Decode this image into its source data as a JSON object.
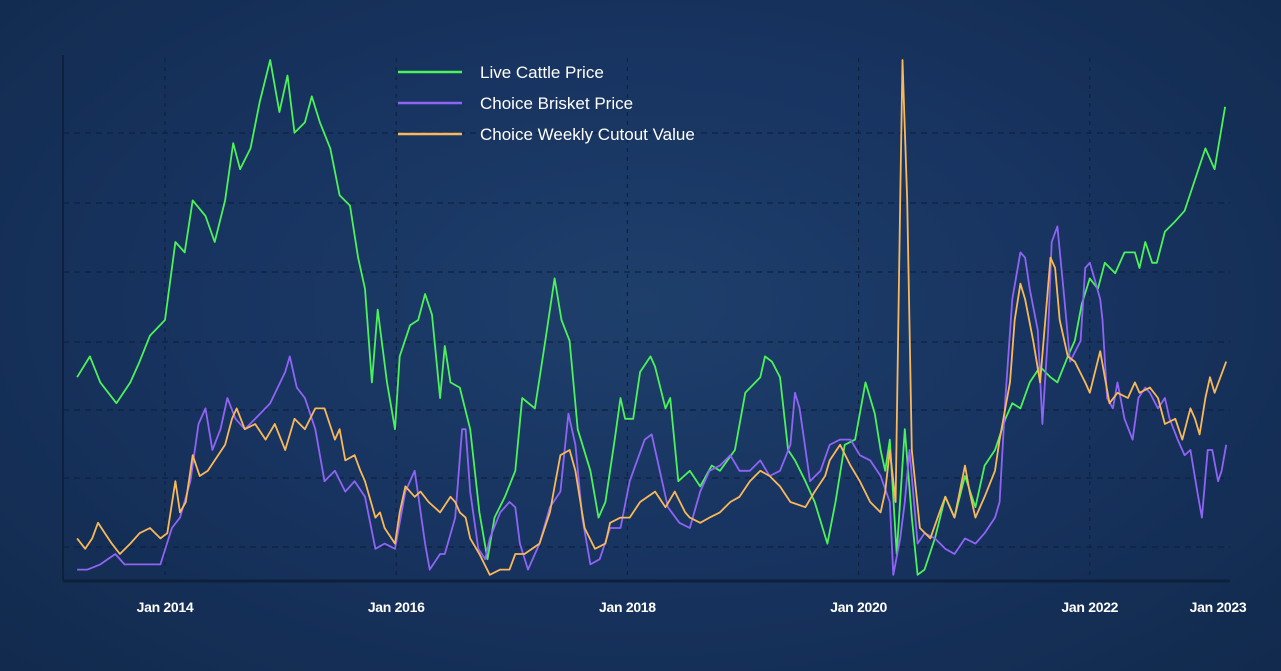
{
  "chart_data": {
    "type": "line",
    "title": "",
    "xlabel": "",
    "ylabel": "",
    "y_units": "relative index (no y-axis labels shown)",
    "xlim": [
      2013.2,
      2023.2
    ],
    "ylim": [
      0,
      100
    ],
    "grid": true,
    "legend_position": "top-center",
    "x_ticks": [
      {
        "value": 2014,
        "label": "Jan 2014"
      },
      {
        "value": 2016,
        "label": "Jan 2016"
      },
      {
        "value": 2018,
        "label": "Jan 2018"
      },
      {
        "value": 2020,
        "label": "Jan 2020"
      },
      {
        "value": 2022,
        "label": "Jan 2022"
      },
      {
        "value": 2023.1,
        "label": "Jan 2023"
      }
    ],
    "series": [
      {
        "name": "Live Cattle Price",
        "color": "#4cf25a",
        "x": [
          2013.24,
          2013.35,
          2013.44,
          2013.58,
          2013.7,
          2013.78,
          2013.87,
          2014.0,
          2014.09,
          2014.17,
          2014.24,
          2014.35,
          2014.43,
          2014.52,
          2014.59,
          2014.65,
          2014.74,
          2014.82,
          2014.91,
          2014.99,
          2015.06,
          2015.12,
          2015.21,
          2015.27,
          2015.34,
          2015.43,
          2015.51,
          2015.6,
          2015.67,
          2015.73,
          2015.79,
          2015.84,
          2015.92,
          2015.99,
          2016.03,
          2016.12,
          2016.19,
          2016.25,
          2016.31,
          2016.38,
          2016.42,
          2016.47,
          2016.55,
          2016.64,
          2016.72,
          2016.79,
          2016.85,
          2016.94,
          2017.03,
          2017.09,
          2017.2,
          2017.29,
          2017.37,
          2017.43,
          2017.5,
          2017.57,
          2017.68,
          2017.75,
          2017.81,
          2017.89,
          2017.94,
          2017.98,
          2018.05,
          2018.11,
          2018.2,
          2018.24,
          2018.33,
          2018.37,
          2018.44,
          2018.54,
          2018.63,
          2018.73,
          2018.8,
          2018.93,
          2019.02,
          2019.15,
          2019.19,
          2019.25,
          2019.32,
          2019.39,
          2019.45,
          2019.54,
          2019.62,
          2019.73,
          2019.8,
          2019.88,
          2019.97,
          2020.06,
          2020.14,
          2020.19,
          2020.23,
          2020.27,
          2020.33,
          2020.4,
          2020.46,
          2020.51,
          2020.57,
          2020.66,
          2020.75,
          2020.83,
          2020.92,
          2021.01,
          2021.09,
          2021.18,
          2021.27,
          2021.33,
          2021.4,
          2021.48,
          2021.57,
          2021.66,
          2021.72,
          2021.81,
          2021.87,
          2021.93,
          2022.0,
          2022.07,
          2022.13,
          2022.22,
          2022.3,
          2022.39,
          2022.43,
          2022.48,
          2022.54,
          2022.58,
          2022.65,
          2022.74,
          2022.82,
          2022.91,
          2023.0,
          2023.08,
          2023.17
        ],
        "y": [
          39,
          43,
          38,
          34,
          38,
          42,
          47,
          50,
          65,
          63,
          73,
          70,
          65,
          73,
          84,
          79,
          83,
          92,
          100,
          90,
          97,
          86,
          88,
          93,
          88,
          83,
          74,
          72,
          62,
          56,
          38,
          52,
          38,
          29,
          43,
          49,
          50,
          55,
          51,
          35,
          45,
          38,
          37,
          29,
          13,
          4,
          12,
          16,
          21,
          35,
          33,
          46,
          58,
          50,
          46,
          29,
          21,
          12,
          15,
          27,
          35,
          31,
          31,
          40,
          43,
          41,
          33,
          35,
          19,
          21,
          18,
          22,
          21,
          25,
          36,
          39,
          43,
          42,
          39,
          25,
          23,
          19,
          15,
          7,
          15,
          26,
          27,
          38,
          32,
          25,
          21,
          27,
          5,
          29,
          12,
          1,
          2,
          8,
          16,
          12,
          20,
          14,
          22,
          25,
          31,
          34,
          33,
          38,
          41,
          39,
          38,
          43,
          46,
          53,
          58,
          56,
          61,
          59,
          63,
          63,
          60,
          65,
          61,
          61,
          67,
          69,
          71,
          77,
          83,
          79,
          91
        ]
      },
      {
        "name": "Choice Brisket Price",
        "color": "#8f64f5",
        "x": [
          2013.24,
          2013.33,
          2013.44,
          2013.57,
          2013.65,
          2013.78,
          2013.96,
          2014.06,
          2014.13,
          2014.22,
          2014.29,
          2014.35,
          2014.41,
          2014.48,
          2014.54,
          2014.61,
          2014.69,
          2014.78,
          2014.91,
          2015.04,
          2015.08,
          2015.14,
          2015.21,
          2015.3,
          2015.38,
          2015.47,
          2015.56,
          2015.64,
          2015.73,
          2015.82,
          2015.9,
          2015.99,
          2016.08,
          2016.16,
          2016.25,
          2016.29,
          2016.38,
          2016.42,
          2016.51,
          2016.57,
          2016.6,
          2016.64,
          2016.71,
          2016.77,
          2016.81,
          2016.9,
          2016.98,
          2017.03,
          2017.07,
          2017.14,
          2017.24,
          2017.33,
          2017.42,
          2017.49,
          2017.55,
          2017.61,
          2017.68,
          2017.76,
          2017.85,
          2017.94,
          2018.02,
          2018.15,
          2018.21,
          2018.28,
          2018.35,
          2018.45,
          2018.54,
          2018.63,
          2018.71,
          2018.8,
          2018.89,
          2018.97,
          2019.06,
          2019.15,
          2019.23,
          2019.32,
          2019.41,
          2019.45,
          2019.49,
          2019.58,
          2019.67,
          2019.75,
          2019.84,
          2019.93,
          2020.01,
          2020.1,
          2020.19,
          2020.27,
          2020.3,
          2020.36,
          2020.4,
          2020.44,
          2020.51,
          2020.57,
          2020.66,
          2020.75,
          2020.83,
          2020.92,
          2021.01,
          2021.09,
          2021.18,
          2021.22,
          2021.27,
          2021.33,
          2021.4,
          2021.44,
          2021.48,
          2021.55,
          2021.59,
          2021.64,
          2021.67,
          2021.72,
          2021.78,
          2021.83,
          2021.92,
          2021.96,
          2022.0,
          2022.04,
          2022.09,
          2022.11,
          2022.15,
          2022.2,
          2022.24,
          2022.3,
          2022.37,
          2022.42,
          2022.48,
          2022.52,
          2022.59,
          2022.65,
          2022.69,
          2022.76,
          2022.82,
          2022.87,
          2022.93,
          2022.97,
          2023.02,
          2023.06,
          2023.11,
          2023.14,
          2023.18
        ],
        "y": [
          2,
          2,
          3,
          5,
          3,
          3,
          3,
          10,
          12,
          19,
          30,
          33,
          25,
          29,
          35,
          31,
          29,
          31,
          34,
          40,
          43,
          37,
          35,
          29,
          19,
          21,
          17,
          19,
          16,
          6,
          7,
          6,
          17,
          21,
          7,
          2,
          5,
          5,
          12,
          29,
          29,
          17,
          6,
          4,
          8,
          13,
          15,
          14,
          7,
          2,
          7,
          14,
          17,
          32,
          26,
          12,
          3,
          4,
          10,
          10,
          19,
          27,
          28,
          21,
          14,
          11,
          10,
          17,
          21,
          22,
          24,
          21,
          21,
          23,
          20,
          21,
          26,
          36,
          33,
          19,
          21,
          26,
          27,
          27,
          24,
          23,
          20,
          15,
          1,
          8,
          15,
          25,
          7,
          9,
          8,
          6,
          5,
          8,
          7,
          9,
          12,
          15,
          35,
          54,
          63,
          62,
          56,
          48,
          30,
          48,
          65,
          68,
          54,
          42,
          46,
          60,
          61,
          58,
          54,
          50,
          35,
          33,
          38,
          31,
          27,
          35,
          37,
          36,
          33,
          35,
          31,
          27,
          24,
          25,
          17,
          12,
          25,
          25,
          19,
          21,
          26
        ]
      },
      {
        "name": "Choice Weekly Cutout Value",
        "color": "#f9b95a",
        "x": [
          2013.24,
          2013.31,
          2013.37,
          2013.42,
          2013.48,
          2013.54,
          2013.61,
          2013.7,
          2013.78,
          2013.87,
          2013.96,
          2014.02,
          2014.09,
          2014.13,
          2014.18,
          2014.24,
          2014.3,
          2014.37,
          2014.43,
          2014.52,
          2014.58,
          2014.62,
          2014.69,
          2014.78,
          2014.87,
          2014.95,
          2015.04,
          2015.12,
          2015.21,
          2015.3,
          2015.38,
          2015.47,
          2015.51,
          2015.56,
          2015.64,
          2015.69,
          2015.73,
          2015.82,
          2015.86,
          2015.9,
          2015.99,
          2016.03,
          2016.08,
          2016.16,
          2016.21,
          2016.28,
          2016.38,
          2016.47,
          2016.51,
          2016.55,
          2016.6,
          2016.64,
          2016.72,
          2016.81,
          2016.9,
          2016.98,
          2017.03,
          2017.11,
          2017.24,
          2017.33,
          2017.37,
          2017.42,
          2017.5,
          2017.55,
          2017.63,
          2017.72,
          2017.81,
          2017.85,
          2017.94,
          2018.02,
          2018.11,
          2018.24,
          2018.33,
          2018.41,
          2018.5,
          2018.54,
          2018.63,
          2018.71,
          2018.8,
          2018.89,
          2018.97,
          2019.06,
          2019.15,
          2019.23,
          2019.32,
          2019.41,
          2019.54,
          2019.62,
          2019.71,
          2019.75,
          2019.84,
          2019.93,
          2020.01,
          2020.1,
          2020.19,
          2020.23,
          2020.27,
          2020.32,
          2020.36,
          2020.38,
          2020.42,
          2020.46,
          2020.53,
          2020.62,
          2020.7,
          2020.75,
          2020.83,
          2020.92,
          2020.96,
          2021.01,
          2021.09,
          2021.18,
          2021.22,
          2021.31,
          2021.35,
          2021.4,
          2021.44,
          2021.51,
          2021.57,
          2021.66,
          2021.7,
          2021.74,
          2021.81,
          2021.87,
          2021.96,
          2022.0,
          2022.09,
          2022.13,
          2022.17,
          2022.24,
          2022.33,
          2022.39,
          2022.43,
          2022.52,
          2022.59,
          2022.65,
          2022.74,
          2022.8,
          2022.87,
          2022.91,
          2022.95,
          2023.0,
          2023.04,
          2023.08,
          2023.18
        ],
        "y": [
          8,
          6,
          8,
          11,
          9,
          7,
          5,
          7,
          9,
          10,
          8,
          9,
          19,
          13,
          15,
          24,
          20,
          21,
          23,
          26,
          31,
          33,
          29,
          30,
          27,
          30,
          25,
          31,
          29,
          33,
          33,
          27,
          29,
          23,
          24,
          21,
          19,
          12,
          13,
          10,
          7,
          13,
          18,
          16,
          17,
          15,
          13,
          16,
          15,
          13,
          12,
          8,
          5,
          1,
          2,
          2,
          5,
          5,
          7,
          13,
          18,
          24,
          25,
          21,
          10,
          6,
          7,
          11,
          12,
          12,
          15,
          17,
          14,
          17,
          13,
          12,
          11,
          12,
          13,
          15,
          16,
          19,
          21,
          20,
          18,
          15,
          14,
          17,
          20,
          23,
          26,
          22,
          19,
          15,
          13,
          17,
          25,
          15,
          73,
          100,
          73,
          25,
          10,
          8,
          13,
          16,
          12,
          22,
          17,
          12,
          16,
          21,
          27,
          38,
          50,
          57,
          54,
          46,
          38,
          62,
          60,
          50,
          43,
          42,
          38,
          36,
          44,
          39,
          34,
          36,
          35,
          38,
          36,
          37,
          35,
          30,
          31,
          27,
          33,
          31,
          28,
          35,
          39,
          36,
          42
        ]
      }
    ]
  }
}
